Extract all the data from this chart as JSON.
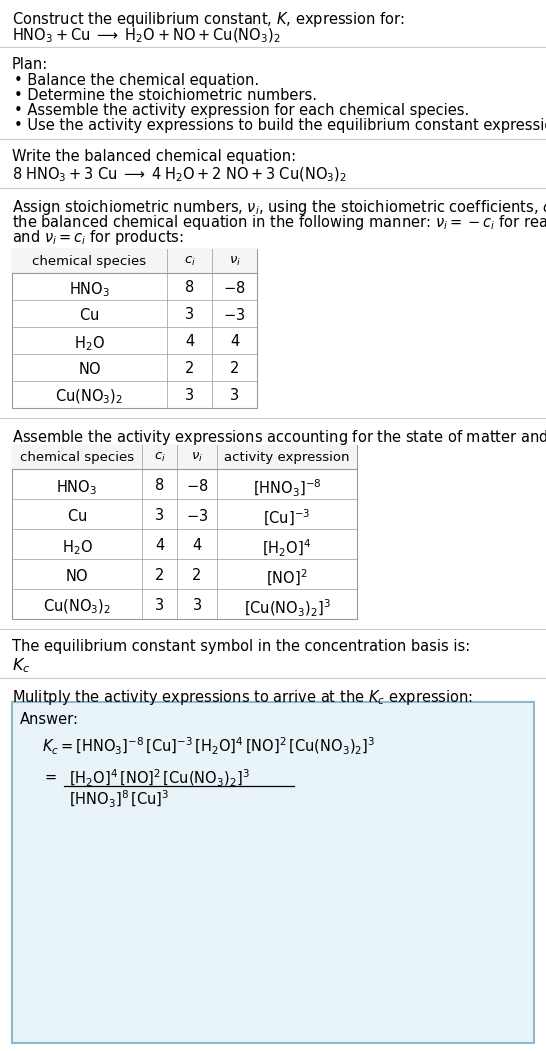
{
  "bg_color": "#ffffff",
  "text_color": "#000000",
  "font_size": 10.5,
  "title_line1": "Construct the equilibrium constant, $K$, expression for:",
  "title_line2": "$\\mathrm{HNO_3 + Cu \\;\\longrightarrow\\; H_2O + NO + Cu(NO_3)_2}$",
  "plan_header": "Plan:",
  "plan_items": [
    "\\textbullet\\; Balance the chemical equation.",
    "\\textbullet\\; Determine the stoichiometric numbers.",
    "\\textbullet\\; Assemble the activity expression for each chemical species.",
    "\\textbullet\\; Use the activity expressions to build the equilibrium constant expression."
  ],
  "balanced_header": "Write the balanced chemical equation:",
  "balanced_eq": "$\\mathrm{8\\;HNO_3 + 3\\;Cu \\;\\longrightarrow\\; 4\\;H_2O + 2\\;NO + 3\\;Cu(NO_3)_2}$",
  "stoich_header_parts": [
    "Assign stoichiometric numbers, $\\nu_i$, using the stoichiometric coefficients, $c_i$, from",
    "the balanced chemical equation in the following manner: $\\nu_i = -c_i$ for reactants",
    "and $\\nu_i = c_i$ for products:"
  ],
  "table1_col_headers": [
    "chemical species",
    "$c_i$",
    "$\\nu_i$"
  ],
  "table1_data": [
    [
      "$\\mathrm{HNO_3}$",
      "8",
      "$-8$"
    ],
    [
      "$\\mathrm{Cu}$",
      "3",
      "$-3$"
    ],
    [
      "$\\mathrm{H_2O}$",
      "4",
      "4"
    ],
    [
      "$\\mathrm{NO}$",
      "2",
      "2"
    ],
    [
      "$\\mathrm{Cu(NO_3)_2}$",
      "3",
      "3"
    ]
  ],
  "assemble_header": "Assemble the activity expressions accounting for the state of matter and $\\nu_i$:",
  "table2_col_headers": [
    "chemical species",
    "$c_i$",
    "$\\nu_i$",
    "activity expression"
  ],
  "table2_data": [
    [
      "$\\mathrm{HNO_3}$",
      "8",
      "$-8$",
      "$[\\mathrm{HNO_3}]^{-8}$"
    ],
    [
      "$\\mathrm{Cu}$",
      "3",
      "$-3$",
      "$[\\mathrm{Cu}]^{-3}$"
    ],
    [
      "$\\mathrm{H_2O}$",
      "4",
      "4",
      "$[\\mathrm{H_2O}]^{4}$"
    ],
    [
      "$\\mathrm{NO}$",
      "2",
      "2",
      "$[\\mathrm{NO}]^{2}$"
    ],
    [
      "$\\mathrm{Cu(NO_3)_2}$",
      "3",
      "3",
      "$[\\mathrm{Cu(NO_3)_2}]^{3}$"
    ]
  ],
  "kc_header": "The equilibrium constant symbol in the concentration basis is:",
  "kc_symbol": "$K_c$",
  "multiply_header": "Mulitply the activity expressions to arrive at the $K_c$ expression:",
  "answer_label": "Answer:",
  "answer_line1": "$K_c = [\\mathrm{HNO_3}]^{-8}\\,[\\mathrm{Cu}]^{-3}\\,[\\mathrm{H_2O}]^{4}\\,[\\mathrm{NO}]^{2}\\,[\\mathrm{Cu(NO_3)_2}]^{3}$",
  "answer_line2a": "$[\\mathrm{H_2O}]^{4}\\,[\\mathrm{NO}]^{2}\\,[\\mathrm{Cu(NO_3)_2}]^{3}$",
  "answer_line2b": "$[\\mathrm{HNO_3}]^{8}\\,[\\mathrm{Cu}]^{3}$",
  "answer_eq_sign": "$=$",
  "answer_box_color": "#e8f4f8",
  "answer_box_border": "#90b8cc",
  "divider_color": "#cccccc",
  "table_border_color": "#999999"
}
